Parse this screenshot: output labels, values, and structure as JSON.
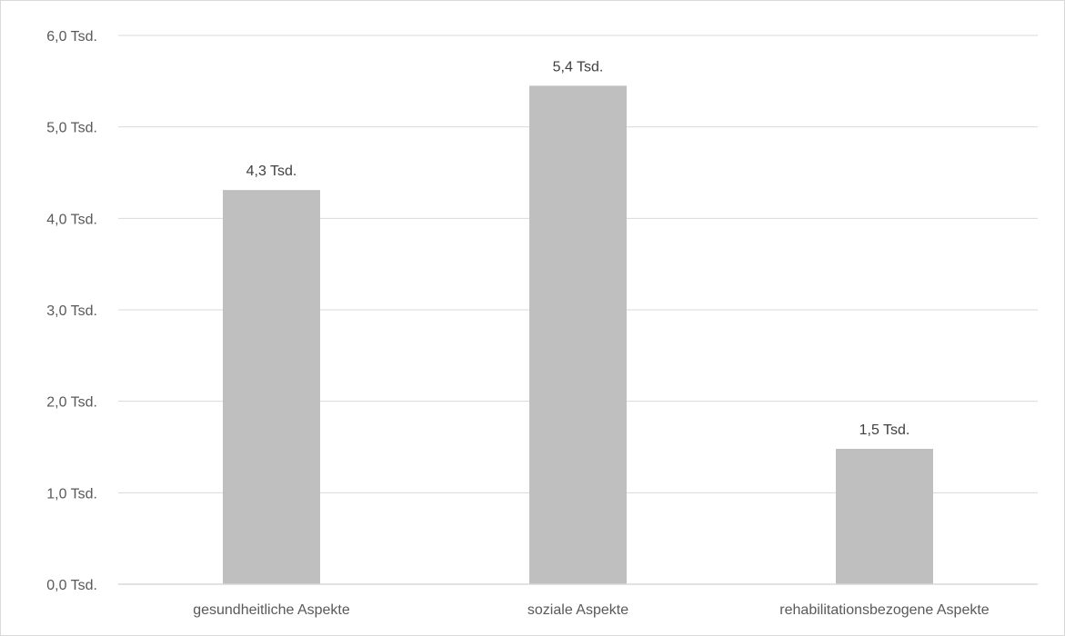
{
  "chart_data": {
    "type": "bar",
    "categories": [
      "gesundheitliche Aspekte",
      "soziale Aspekte",
      "rehabilitationsbezogene Aspekte"
    ],
    "values": [
      4.3,
      5.4,
      1.5
    ],
    "data_labels": [
      "4,3 Tsd.",
      "5,4 Tsd.",
      "1,5 Tsd."
    ],
    "bar_values": [
      4.31,
      5.45,
      1.48
    ],
    "y_ticks": [
      0,
      1,
      2,
      3,
      4,
      5,
      6
    ],
    "y_tick_labels": [
      "0,0 Tsd.",
      "1,0 Tsd.",
      "2,0 Tsd.",
      "3,0 Tsd.",
      "4,0 Tsd.",
      "5,0 Tsd.",
      "6,0 Tsd."
    ],
    "ylim": [
      0,
      6
    ],
    "ylabel_unit": "Tsd.",
    "grid": true,
    "legend": "none",
    "title": "",
    "xlabel": "",
    "ylabel": "",
    "colors": {
      "bar": "#bfbfbf",
      "grid": "#d9d9d9",
      "axis": "#d9d9d9",
      "text": "#595959"
    }
  }
}
